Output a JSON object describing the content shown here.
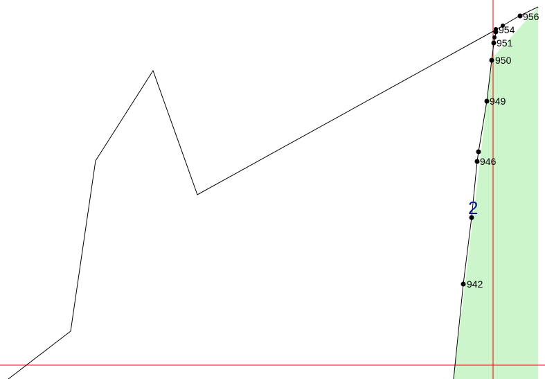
{
  "parcel": {
    "number": "2",
    "fill_color": "#ccf5cc"
  },
  "boundary_line_color": "#000000",
  "crosshair_color": "#ff0000",
  "point_color": "#000000",
  "label_color": "#0a1a8c",
  "points": [
    {
      "label": "956"
    },
    {
      "label": "954"
    },
    {
      "label": "951"
    },
    {
      "label": "950"
    },
    {
      "label": "949"
    },
    {
      "label": "946"
    },
    {
      "label": "942"
    },
    {
      "label": ""
    },
    {
      "label": ""
    },
    {
      "label": ""
    },
    {
      "label": ""
    },
    {
      "label": ""
    }
  ]
}
